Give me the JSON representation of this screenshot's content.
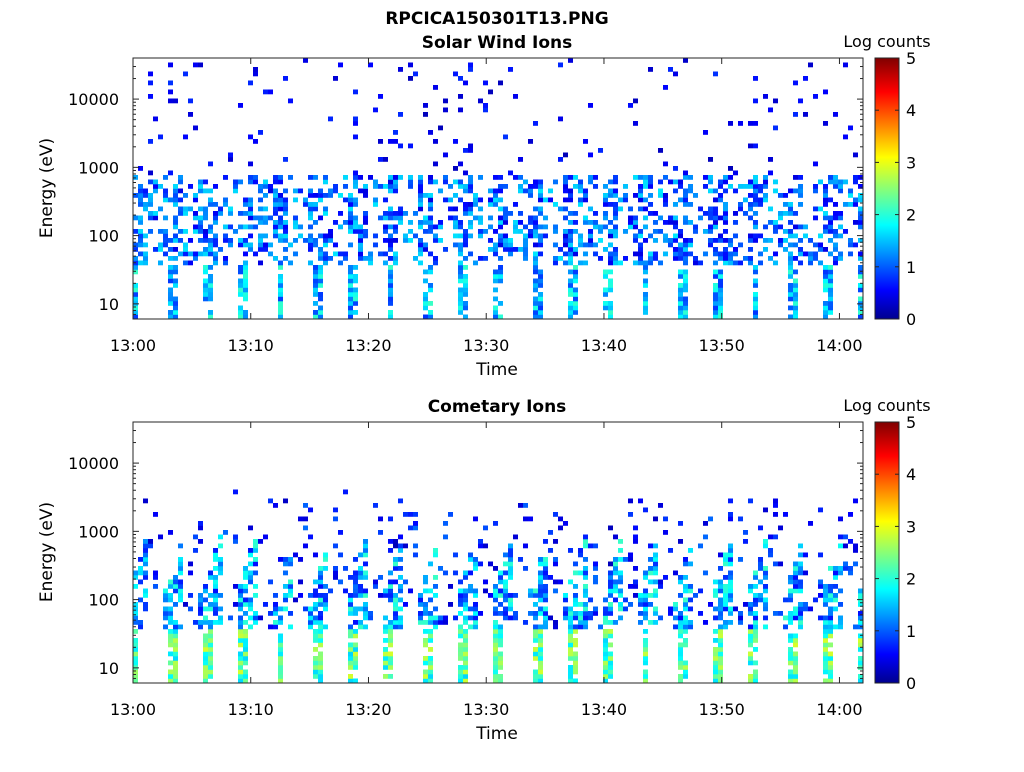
{
  "figure": {
    "title": "RPCICA150301T13.PNG"
  },
  "chart_data": [
    {
      "type": "heatmap",
      "title": "Solar Wind Ions",
      "xlabel": "Time",
      "ylabel": "Energy (eV)",
      "y_scale": "log",
      "ylim": [
        6,
        40000
      ],
      "y_ticks": [
        10,
        100,
        1000,
        10000
      ],
      "y_tick_labels": [
        "10",
        "100",
        "1000",
        "10000"
      ],
      "xlim": [
        "13:00",
        "14:02"
      ],
      "x_tick_labels": [
        "13:00",
        "13:10",
        "13:20",
        "13:30",
        "13:40",
        "13:50",
        "14:00"
      ],
      "colorbar": {
        "label": "Log counts",
        "range": [
          0,
          5
        ],
        "tick_labels": [
          "0",
          "1",
          "2",
          "3",
          "4",
          "5"
        ],
        "colormap": "jet"
      },
      "description_of_pattern": "periodic energy sweeps every ~3 min; counts mostly 0-1 log above 100 eV, bursts up to ~2 log at 10-30 eV"
    },
    {
      "type": "heatmap",
      "title": "Cometary Ions",
      "xlabel": "Time",
      "ylabel": "Energy (eV)",
      "y_scale": "log",
      "ylim": [
        6,
        40000
      ],
      "y_ticks": [
        10,
        100,
        1000,
        10000
      ],
      "y_tick_labels": [
        "10",
        "100",
        "1000",
        "10000"
      ],
      "xlim": [
        "13:00",
        "14:02"
      ],
      "x_tick_labels": [
        "13:00",
        "13:10",
        "13:20",
        "13:30",
        "13:40",
        "13:50",
        "14:00"
      ],
      "colorbar": {
        "label": "Log counts",
        "range": [
          0,
          5
        ],
        "tick_labels": [
          "0",
          "1",
          "2",
          "3",
          "4",
          "5"
        ],
        "colormap": "jet"
      },
      "description_of_pattern": "periodic columns every ~3 min; peak ~2.5-3 log counts at 10-30 eV, ~1.5-2 log at 50-300 eV"
    }
  ]
}
